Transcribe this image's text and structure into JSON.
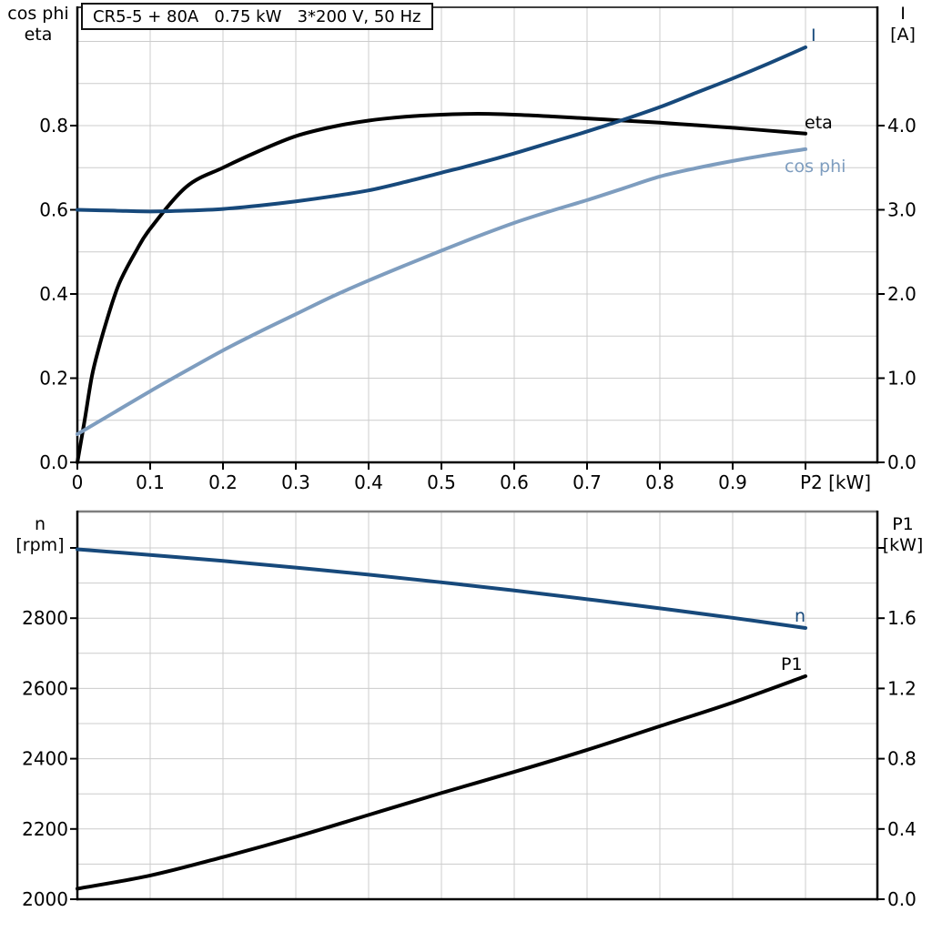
{
  "accent_colors": {
    "dark_blue": "#17497b",
    "light_blue": "#7e9dbf",
    "black": "#000000",
    "grid": "#cccccc",
    "border_gray": "#7f7f7f"
  },
  "chart_data": [
    {
      "type": "line",
      "title": "CR5-5 + 80A   0.75 kW   3*200 V, 50 Hz",
      "x_axis": {
        "label": "P2 [kW]",
        "range": [
          0,
          1.09875
        ],
        "ticks": [
          0,
          0.1,
          0.2,
          0.3,
          0.4,
          0.5,
          0.6,
          0.7,
          0.8,
          0.9
        ],
        "tick_labels": [
          "0",
          "0.1",
          "0.2",
          "0.3",
          "0.4",
          "0.5",
          "0.6",
          "0.7",
          "0.8",
          "0.9"
        ],
        "ticks_unlabeled": [
          1.0
        ],
        "minor_step": 0.1,
        "grid": true
      },
      "left_axis": {
        "header": [
          "cos phi",
          "eta"
        ],
        "range": [
          0,
          1.0811
        ],
        "ticks": [
          0,
          0.2,
          0.4,
          0.6,
          0.8
        ],
        "tick_labels": [
          "0.0",
          "0.2",
          "0.4",
          "0.6",
          "0.8"
        ],
        "ticks_unlabeled": [],
        "minor_step": 0.1,
        "grid": true
      },
      "right_axis": {
        "header": [
          "I",
          "[A]"
        ],
        "range": [
          0,
          5.4054
        ],
        "ticks": [
          0,
          1,
          2,
          3,
          4
        ],
        "tick_labels": [
          "0.0",
          "1.0",
          "2.0",
          "3.0",
          "4.0"
        ],
        "ticks_unlabeled": []
      },
      "legend_position": "curve-end-labels",
      "series": [
        {
          "name": "eta",
          "label": "eta",
          "axis": "left",
          "color": "#000000",
          "x": [
            0,
            0.01,
            0.02,
            0.03,
            0.04,
            0.05,
            0.06,
            0.08,
            0.1,
            0.15,
            0.2,
            0.25,
            0.3,
            0.35,
            0.4,
            0.45,
            0.5,
            0.55,
            0.6,
            0.65,
            0.7,
            0.75,
            0.8,
            0.85,
            0.9,
            0.95,
            1.0
          ],
          "y": [
            0,
            0.1,
            0.205,
            0.275,
            0.335,
            0.39,
            0.435,
            0.5,
            0.555,
            0.655,
            0.7,
            0.74,
            0.775,
            0.797,
            0.812,
            0.821,
            0.826,
            0.828,
            0.826,
            0.822,
            0.817,
            0.812,
            0.807,
            0.801,
            0.795,
            0.788,
            0.781
          ]
        },
        {
          "name": "I",
          "label": "I",
          "axis": "right",
          "color": "#17497b",
          "x": [
            0,
            0.05,
            0.1,
            0.15,
            0.2,
            0.25,
            0.3,
            0.35,
            0.4,
            0.45,
            0.5,
            0.55,
            0.6,
            0.65,
            0.7,
            0.75,
            0.8,
            0.85,
            0.9,
            0.95,
            1.0
          ],
          "y": [
            3.0,
            2.99,
            2.98,
            2.99,
            3.01,
            3.05,
            3.1,
            3.16,
            3.23,
            3.33,
            3.44,
            3.55,
            3.67,
            3.8,
            3.93,
            4.07,
            4.22,
            4.39,
            4.56,
            4.74,
            4.93
          ]
        },
        {
          "name": "cos-phi",
          "label": "cos phi",
          "axis": "left",
          "color": "#7e9dbf",
          "x": [
            0,
            0.05,
            0.1,
            0.15,
            0.2,
            0.25,
            0.3,
            0.35,
            0.4,
            0.45,
            0.5,
            0.55,
            0.6,
            0.65,
            0.7,
            0.75,
            0.8,
            0.85,
            0.9,
            0.95,
            1.0
          ],
          "y": [
            0.067,
            0.118,
            0.169,
            0.218,
            0.266,
            0.31,
            0.352,
            0.394,
            0.432,
            0.468,
            0.503,
            0.537,
            0.569,
            0.597,
            0.623,
            0.651,
            0.679,
            0.699,
            0.716,
            0.731,
            0.744
          ]
        }
      ]
    },
    {
      "type": "line",
      "title": "",
      "x_axis": {
        "label": "",
        "range": [
          0,
          1.09875
        ],
        "ticks": [],
        "tick_labels": [],
        "ticks_unlabeled": [],
        "minor_step": 0.1,
        "grid": true
      },
      "left_axis": {
        "header": [
          "n",
          "[rpm]"
        ],
        "range": [
          2000,
          3103.6
        ],
        "ticks": [
          2000,
          2200,
          2400,
          2600,
          2800
        ],
        "tick_labels": [
          "2000",
          "2200",
          "2400",
          "2600",
          "2800"
        ],
        "ticks_unlabeled": [
          3000
        ],
        "minor_step": 100,
        "grid": true
      },
      "right_axis": {
        "header": [
          "P1",
          "[kW]"
        ],
        "range": [
          0,
          2.2073
        ],
        "ticks": [
          0,
          0.4,
          0.8,
          1.2,
          1.6
        ],
        "tick_labels": [
          "0.0",
          "0.4",
          "0.8",
          "1.2",
          "1.6"
        ],
        "ticks_unlabeled": [
          2.0
        ]
      },
      "legend_position": "curve-end-labels",
      "series": [
        {
          "name": "n",
          "label": "n",
          "axis": "left",
          "color": "#17497b",
          "x": [
            0,
            0.1,
            0.2,
            0.3,
            0.4,
            0.5,
            0.6,
            0.7,
            0.8,
            0.9,
            1.0
          ],
          "y": [
            2996,
            2980,
            2963,
            2944,
            2924,
            2902,
            2879,
            2854,
            2828,
            2801,
            2772
          ]
        },
        {
          "name": "P1",
          "label": "P1",
          "axis": "right",
          "color": "#000000",
          "x": [
            0,
            0.1,
            0.2,
            0.3,
            0.4,
            0.5,
            0.6,
            0.7,
            0.8,
            0.9,
            1.0
          ],
          "y": [
            0.06,
            0.135,
            0.24,
            0.355,
            0.48,
            0.605,
            0.725,
            0.85,
            0.985,
            1.12,
            1.27
          ]
        }
      ]
    }
  ]
}
